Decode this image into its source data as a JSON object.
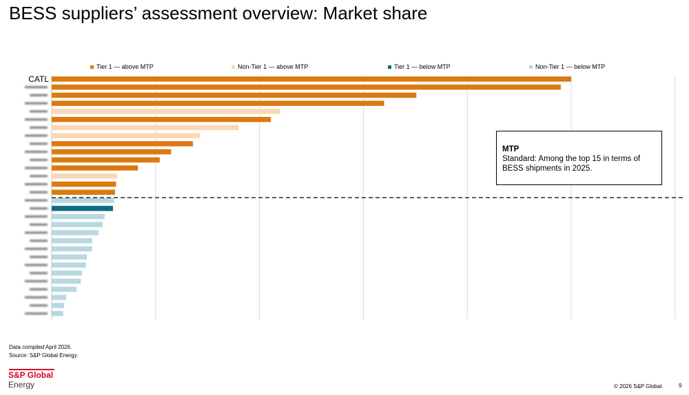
{
  "page": {
    "title": "BESS suppliers’ assessment overview: Market share",
    "footnote_compiled": "Data compiled April 2026.",
    "footnote_source": "Source: S&P Global Energy.",
    "logo_line1": "S&P Global",
    "logo_line2": "Energy",
    "copyright": "© 2026 S&P Global.",
    "page_number": "9"
  },
  "mtp_box": {
    "title": "MTP",
    "text": "Standard: Among the top 15 in terms of BESS shipments in 2025."
  },
  "colors": {
    "tier1_above": "#db7a0f",
    "nontier1_above": "#f9d9b3",
    "tier1_below": "#0e6a82",
    "nontier1_below": "#b8d8e0",
    "gridline": "#d9d9d9",
    "mtp_line": "#000000"
  },
  "chart_data": {
    "type": "bar",
    "orientation": "horizontal",
    "title": "",
    "xlabel": "",
    "ylabel": "",
    "xlim": [
      0,
      6
    ],
    "grid": true,
    "legend_position": "top",
    "legend": [
      {
        "key": "tier1_above",
        "label": "Tier 1 — above MTP"
      },
      {
        "key": "nontier1_above",
        "label": "Non-Tier 1 — above MTP"
      },
      {
        "key": "tier1_below",
        "label": "Tier 1 — below MTP"
      },
      {
        "key": "nontier1_below",
        "label": "Non-Tier 1 — below MTP"
      }
    ],
    "mtp_threshold_after_index": 14,
    "bars": [
      {
        "label": "CATL",
        "value": 5.0,
        "category": "tier1_above"
      },
      {
        "label": "",
        "value": 4.9,
        "category": "tier1_above"
      },
      {
        "label": "",
        "value": 3.51,
        "category": "tier1_above"
      },
      {
        "label": "",
        "value": 3.2,
        "category": "tier1_above"
      },
      {
        "label": "",
        "value": 2.2,
        "category": "nontier1_above"
      },
      {
        "label": "",
        "value": 2.11,
        "category": "tier1_above"
      },
      {
        "label": "",
        "value": 1.8,
        "category": "nontier1_above"
      },
      {
        "label": "",
        "value": 1.43,
        "category": "nontier1_above"
      },
      {
        "label": "",
        "value": 1.36,
        "category": "tier1_above"
      },
      {
        "label": "",
        "value": 1.15,
        "category": "tier1_above"
      },
      {
        "label": "",
        "value": 1.04,
        "category": "tier1_above"
      },
      {
        "label": "",
        "value": 0.83,
        "category": "tier1_above"
      },
      {
        "label": "",
        "value": 0.63,
        "category": "nontier1_above"
      },
      {
        "label": "",
        "value": 0.62,
        "category": "tier1_above"
      },
      {
        "label": "",
        "value": 0.61,
        "category": "tier1_above"
      },
      {
        "label": "",
        "value": 0.6,
        "category": "nontier1_below"
      },
      {
        "label": "",
        "value": 0.59,
        "category": "tier1_below"
      },
      {
        "label": "",
        "value": 0.51,
        "category": "nontier1_below"
      },
      {
        "label": "",
        "value": 0.49,
        "category": "nontier1_below"
      },
      {
        "label": "",
        "value": 0.45,
        "category": "nontier1_below"
      },
      {
        "label": "",
        "value": 0.39,
        "category": "nontier1_below"
      },
      {
        "label": "",
        "value": 0.39,
        "category": "nontier1_below"
      },
      {
        "label": "",
        "value": 0.34,
        "category": "nontier1_below"
      },
      {
        "label": "",
        "value": 0.33,
        "category": "nontier1_below"
      },
      {
        "label": "",
        "value": 0.29,
        "category": "nontier1_below"
      },
      {
        "label": "",
        "value": 0.28,
        "category": "nontier1_below"
      },
      {
        "label": "",
        "value": 0.24,
        "category": "nontier1_below"
      },
      {
        "label": "",
        "value": 0.14,
        "category": "nontier1_below"
      },
      {
        "label": "",
        "value": 0.12,
        "category": "nontier1_below"
      },
      {
        "label": "",
        "value": 0.11,
        "category": "nontier1_below"
      }
    ]
  }
}
